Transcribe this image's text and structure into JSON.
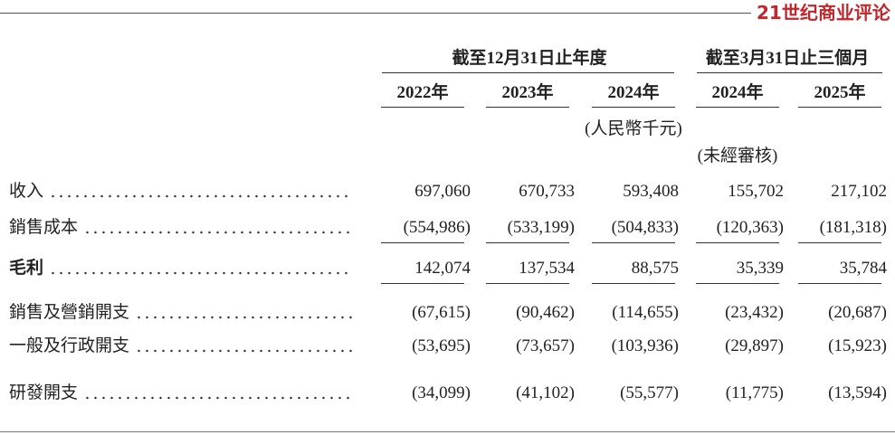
{
  "watermark": "21世纪商业评论",
  "header": {
    "groups": [
      "截至12月31日止年度",
      "截至3月31日止三個月"
    ],
    "years": [
      "2022年",
      "2023年",
      "2024年",
      "2024年",
      "2025年"
    ],
    "unit": "(人民幣千元)",
    "audit_note": "(未經審核)"
  },
  "table": {
    "rows": [
      {
        "label": "收入",
        "values": [
          "697,060",
          "670,733",
          "593,408",
          "155,702",
          "217,102"
        ]
      },
      {
        "label": "銷售成本",
        "values": [
          "(554,986)",
          "(533,199)",
          "(504,833)",
          "(120,363)",
          "(181,318)"
        ]
      },
      {
        "label": "毛利",
        "values": [
          "142,074",
          "137,534",
          "88,575",
          "35,339",
          "35,784"
        ]
      },
      {
        "label": "銷售及營銷開支",
        "values": [
          "(67,615)",
          "(90,462)",
          "(114,655)",
          "(23,432)",
          "(20,687)"
        ]
      },
      {
        "label": "一般及行政開支",
        "values": [
          "(53,695)",
          "(73,657)",
          "(103,936)",
          "(29,897)",
          "(15,923)"
        ]
      },
      {
        "label": "研發開支",
        "values": [
          "(34,099)",
          "(41,102)",
          "(55,577)",
          "(11,775)",
          "(13,594)"
        ]
      }
    ]
  }
}
